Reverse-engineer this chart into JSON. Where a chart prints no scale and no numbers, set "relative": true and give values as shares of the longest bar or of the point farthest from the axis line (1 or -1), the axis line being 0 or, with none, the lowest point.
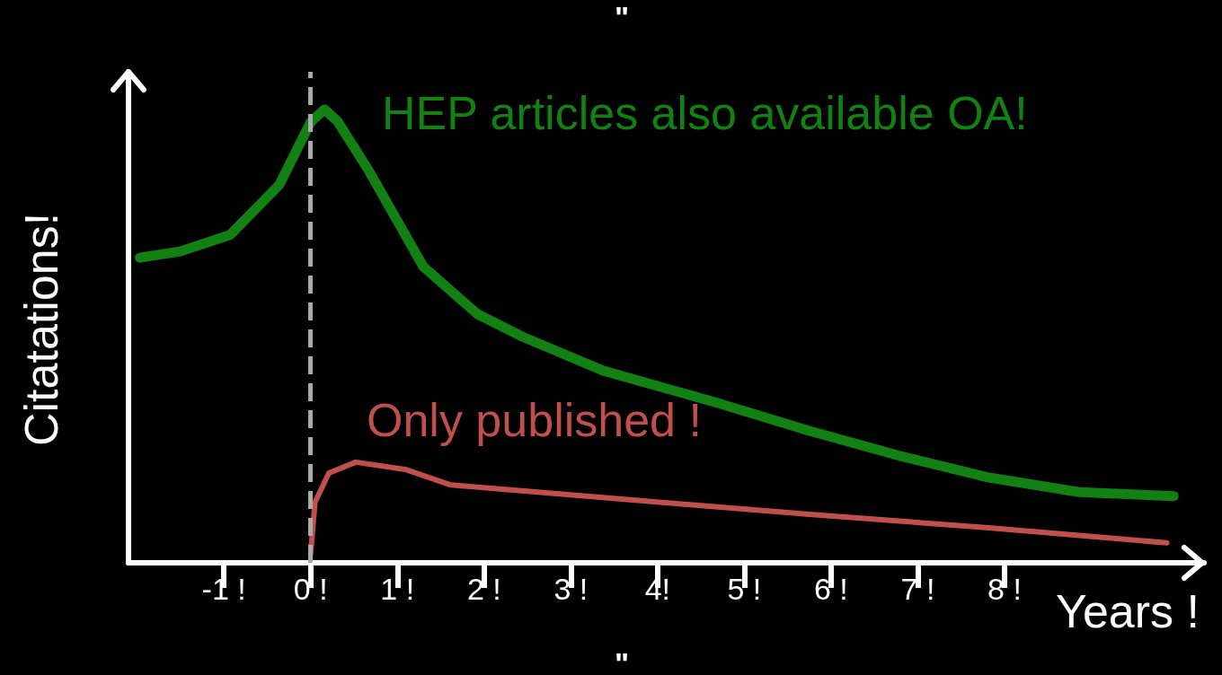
{
  "chart_data": {
    "type": "line",
    "relative": true,
    "xlabel": "Years !",
    "ylabel": "Citatations!",
    "xlim": [
      -2.1,
      10.3
    ],
    "xticks": [
      {
        "value": -1,
        "label": "-1 !"
      },
      {
        "value": 0,
        "label": "0 !"
      },
      {
        "value": 1,
        "label": "1 !"
      },
      {
        "value": 2,
        "label": "2 !"
      },
      {
        "value": 3,
        "label": "3 !"
      },
      {
        "value": 4,
        "label": "4!"
      },
      {
        "value": 5,
        "label": "5 !"
      },
      {
        "value": 6,
        "label": "6 !"
      },
      {
        "value": 7,
        "label": "7 !"
      },
      {
        "value": 8,
        "label": "8 !"
      }
    ],
    "series": [
      {
        "name": "HEP articles also available OA!",
        "color": "#128012",
        "x": [
          -1.97,
          -1.5,
          -0.93,
          -0.36,
          0,
          0.16,
          0.31,
          0.67,
          1.3,
          1.92,
          2.44,
          3.37,
          4.72,
          5.75,
          6.79,
          7.82,
          8.86,
          9.95
        ],
        "values": [
          0.673,
          0.687,
          0.723,
          0.834,
          0.972,
          1,
          0.974,
          0.865,
          0.653,
          0.549,
          0.499,
          0.424,
          0.351,
          0.291,
          0.236,
          0.188,
          0.156,
          0.147
        ]
      },
      {
        "name": "Only published !",
        "color": "#c0504d",
        "x": [
          0,
          0.05,
          0.21,
          0.52,
          1.09,
          1.61,
          3.68,
          5.75,
          7.82,
          9.87
        ],
        "values": [
          0.02,
          0.133,
          0.198,
          0.222,
          0.206,
          0.172,
          0.139,
          0.107,
          0.077,
          0.044
        ]
      }
    ],
    "ref_lines": [
      {
        "axis": "x",
        "value": 0,
        "color": "#aaaaaa",
        "line_style": "dashed"
      }
    ],
    "annotations": [
      "\"",
      "\""
    ],
    "marker": "none",
    "line_style": "solid"
  }
}
